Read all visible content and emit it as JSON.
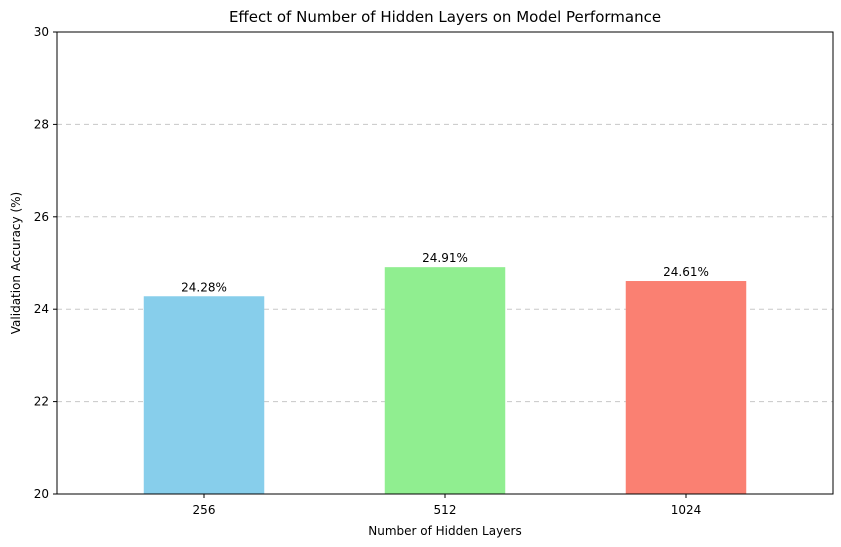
{
  "chart_data": {
    "type": "bar",
    "title": "Effect of Number of Hidden Layers on Model Performance",
    "xlabel": "Number of Hidden Layers",
    "ylabel": "Validation Accuracy (%)",
    "categories": [
      "256",
      "512",
      "1024"
    ],
    "values": [
      24.28,
      24.91,
      24.61
    ],
    "data_labels": [
      "24.28%",
      "24.91%",
      "24.61%"
    ],
    "colors": [
      "#87ceeb",
      "#90ee90",
      "#fa8072"
    ],
    "ylim": [
      20,
      30
    ],
    "yticks": [
      20,
      22,
      24,
      26,
      28,
      30
    ],
    "ytick_labels": [
      "20",
      "22",
      "24",
      "26",
      "28",
      "30"
    ],
    "grid": "y-dashed",
    "legend": "none"
  }
}
